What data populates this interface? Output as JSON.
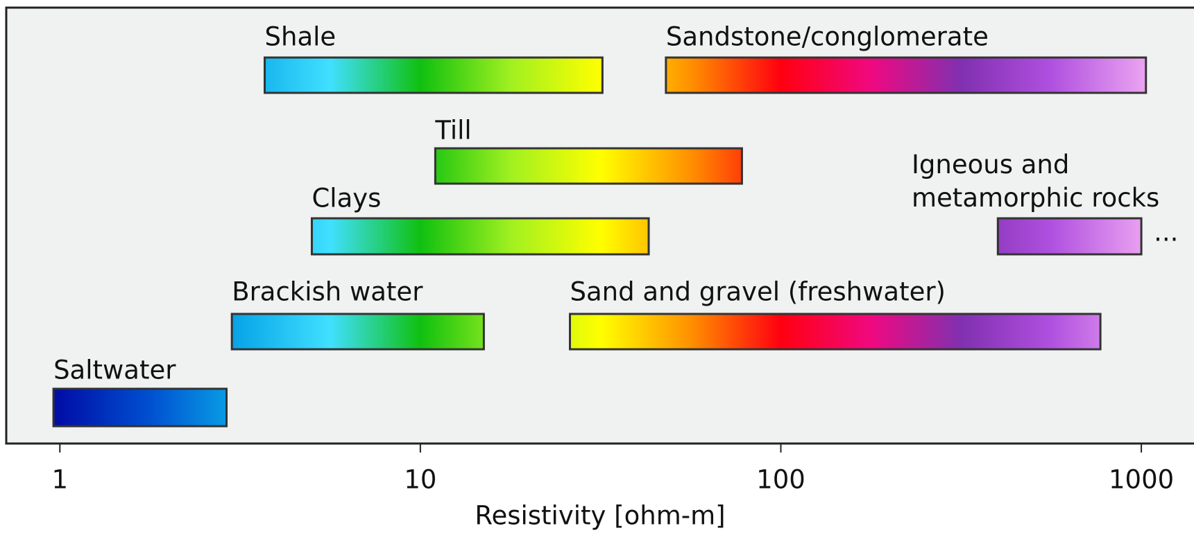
{
  "chart_data": {
    "type": "range_bar",
    "xlabel": "Resistivity [ohm-m]",
    "log_x": true,
    "xlim": [
      0.71,
      1400
    ],
    "xticks": [
      1,
      10,
      100,
      1000
    ],
    "colorscale": [
      "#0010a8",
      "#0050d0",
      "#0aa8e8",
      "#40e0ff",
      "#10c010",
      "#a0f020",
      "#ffff00",
      "#ff9000",
      "#ff0010",
      "#f00880",
      "#8030b0",
      "#b050e0",
      "#e8a0f0"
    ],
    "bars": [
      {
        "name": "Shale",
        "values": [
          3.7,
          32
        ]
      },
      {
        "name": "Sandstone/conglomerate",
        "values": [
          48,
          1030
        ]
      },
      {
        "name": "Till",
        "values": [
          11,
          78
        ]
      },
      {
        "name": "Igneous and metamorphic rocks",
        "values": [
          400,
          1000
        ],
        "annotation": "..."
      },
      {
        "name": "Clays",
        "values": [
          5,
          43
        ]
      },
      {
        "name": "Brackish water",
        "values": [
          3,
          15
        ]
      },
      {
        "name": "Sand and gravel (freshwater)",
        "values": [
          26,
          770
        ]
      },
      {
        "name": "Saltwater",
        "values": [
          0.96,
          2.9
        ]
      }
    ]
  }
}
